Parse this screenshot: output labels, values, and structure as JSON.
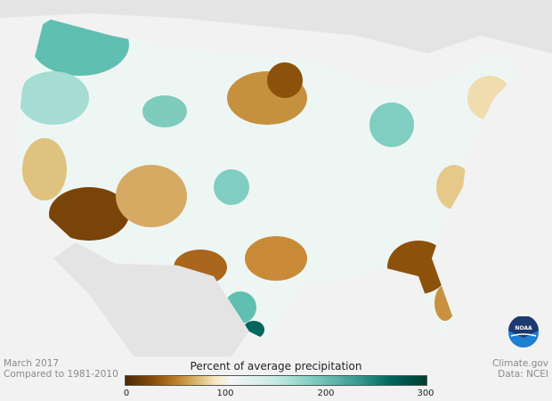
{
  "map": {
    "title": "Percent of average precipitation",
    "colors": {
      "background": "#f2f2f2",
      "land": "#e4e4e4",
      "dry": "#8c510a",
      "wet": "#01665e"
    }
  },
  "footer": {
    "date": "March 2017",
    "baseline": "Compared to 1981-2010",
    "source": "Climate.gov",
    "data": "Data: NCEI"
  },
  "legend": {
    "ticks": [
      "0",
      "100",
      "200",
      "300"
    ],
    "min": 0,
    "max": 300
  },
  "logo": {
    "text": "NOAA"
  }
}
